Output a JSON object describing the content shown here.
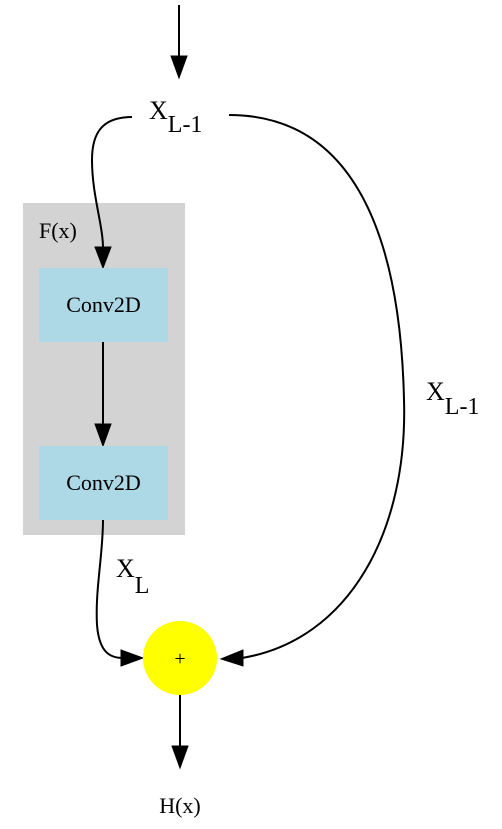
{
  "nodes": {
    "input": {
      "var": "X",
      "sub": "L-1"
    },
    "cluster": {
      "label": "F(x)",
      "fill": "#d3d3d3"
    },
    "conv1": {
      "label": "Conv2D",
      "fill": "#add8e6"
    },
    "conv2": {
      "label": "Conv2D",
      "fill": "#add8e6"
    },
    "add": {
      "label": "+",
      "fill": "#ffff00"
    },
    "output": {
      "label": "H(x)"
    }
  },
  "edges": {
    "skip": {
      "var": "X",
      "sub": "L-1"
    },
    "residual": {
      "var": "X",
      "sub": "L"
    }
  }
}
